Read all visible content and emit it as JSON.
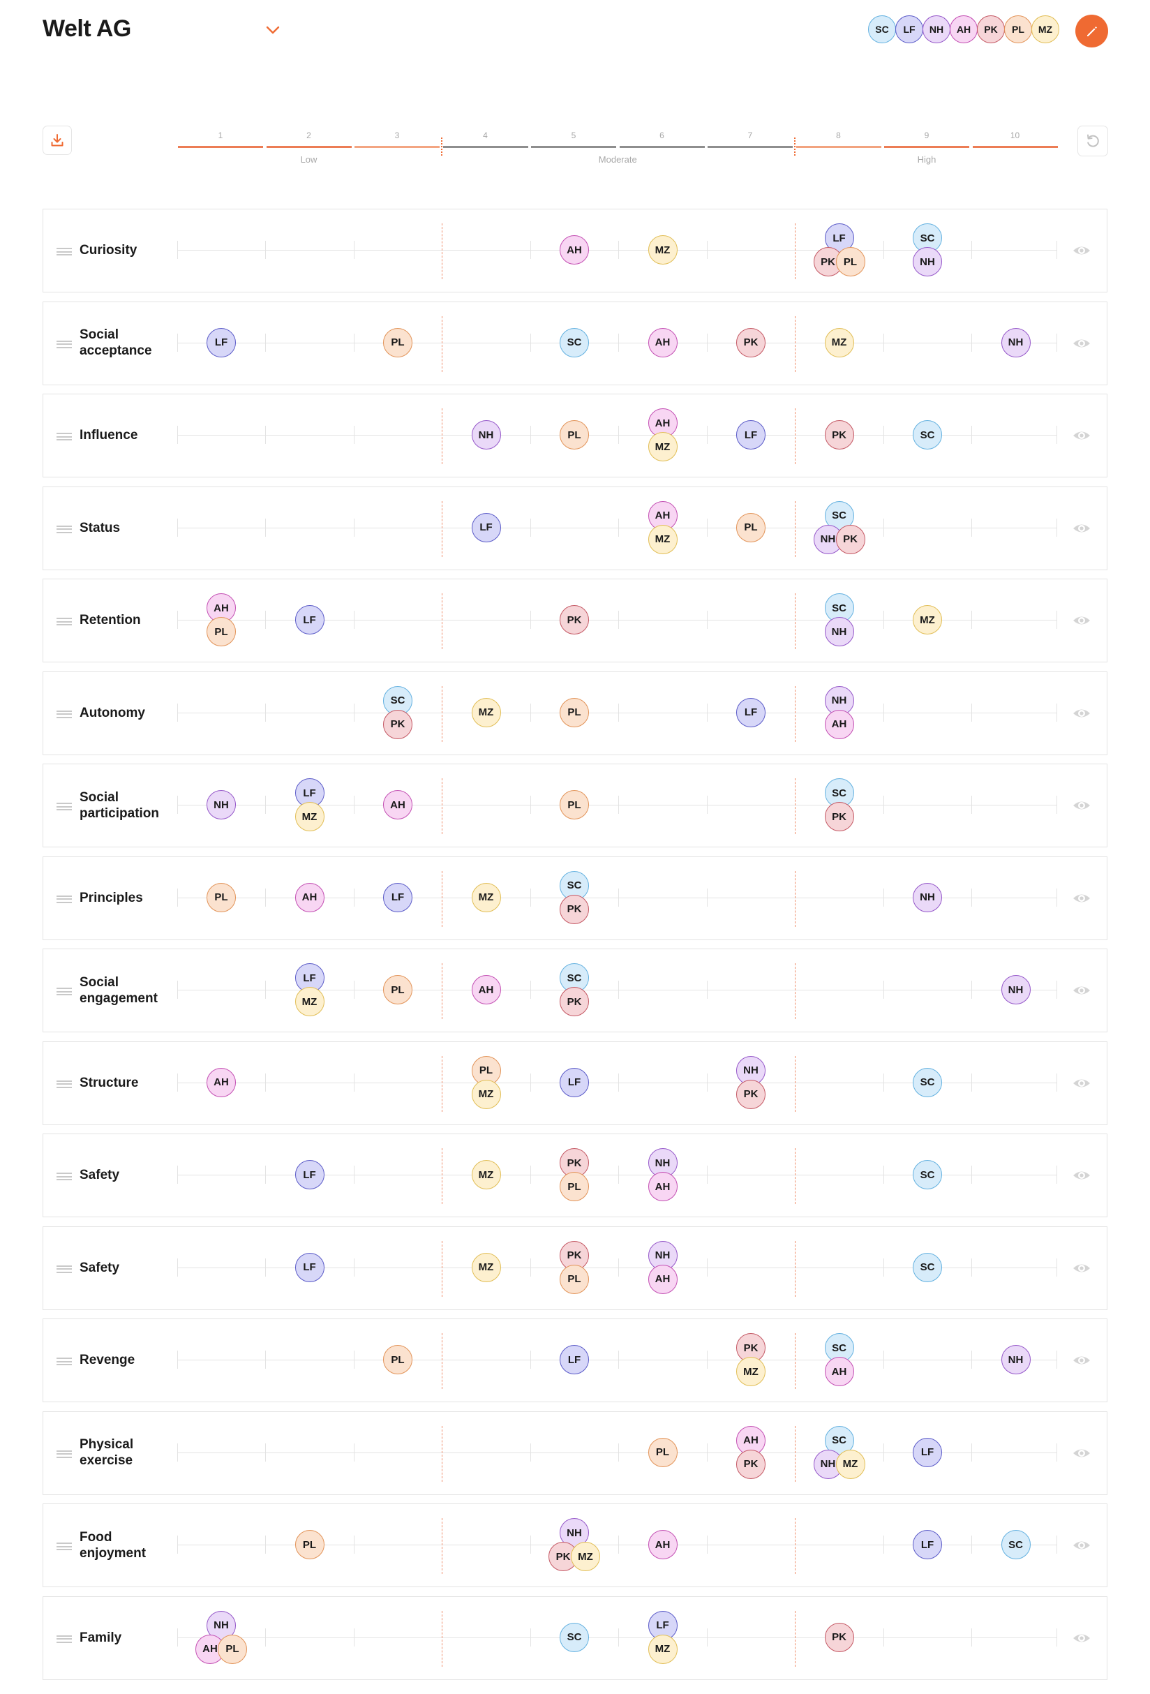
{
  "header": {
    "company": "Welt AG",
    "team": [
      "SC",
      "LF",
      "NH",
      "AH",
      "PK",
      "PL",
      "MZ"
    ]
  },
  "colors": {
    "accent": "#ef6a32",
    "SC": {
      "fill": "#d7ecfa",
      "border": "#63b1e0"
    },
    "LF": {
      "fill": "#d7d7f8",
      "border": "#5b5bc8"
    },
    "NH": {
      "fill": "#ead9f8",
      "border": "#9557c9"
    },
    "AH": {
      "fill": "#f8d6f3",
      "border": "#c34fb3"
    },
    "PK": {
      "fill": "#f6d5d8",
      "border": "#c45864"
    },
    "PL": {
      "fill": "#fbe2cf",
      "border": "#e29358"
    },
    "MZ": {
      "fill": "#fdf0cf",
      "border": "#e1be56"
    }
  },
  "scale": {
    "numbers": [
      "1",
      "2",
      "3",
      "4",
      "5",
      "6",
      "7",
      "8",
      "9",
      "10"
    ],
    "bands": [
      {
        "label": "Low",
        "from": 1,
        "to": 3
      },
      {
        "label": "Moderate",
        "from": 4,
        "to": 7
      },
      {
        "label": "High",
        "from": 8,
        "to": 10
      }
    ]
  },
  "icons": {
    "header": "chevron-down-icon",
    "edit": "pencil-icon",
    "download": "download-icon",
    "reset": "reset-icon",
    "row_drag": "drag-handle-icon",
    "row_visibility": "eye-icon"
  },
  "rows": [
    {
      "label": "Curiosity",
      "ratings": {
        "AH": 5,
        "MZ": 6,
        "LF": 8,
        "PK": 8,
        "PL": 8,
        "SC": 9,
        "NH": 9
      }
    },
    {
      "label": "Social acceptance",
      "ratings": {
        "LF": 1,
        "PL": 3,
        "SC": 5,
        "AH": 6,
        "PK": 7,
        "MZ": 8,
        "NH": 10
      }
    },
    {
      "label": "Influence",
      "ratings": {
        "NH": 4,
        "PL": 5,
        "AH": 6,
        "MZ": 6,
        "LF": 7,
        "PK": 8,
        "SC": 9
      }
    },
    {
      "label": "Status",
      "ratings": {
        "LF": 4,
        "AH": 6,
        "MZ": 6,
        "PL": 7,
        "SC": 8,
        "NH": 8,
        "PK": 8
      }
    },
    {
      "label": "Retention",
      "ratings": {
        "AH": 1,
        "PL": 1,
        "LF": 2,
        "PK": 5,
        "SC": 8,
        "NH": 8,
        "MZ": 9
      }
    },
    {
      "label": "Autonomy",
      "ratings": {
        "SC": 3,
        "PK": 3,
        "MZ": 4,
        "PL": 5,
        "LF": 7,
        "NH": 8,
        "AH": 8
      }
    },
    {
      "label": "Social participation",
      "ratings": {
        "NH": 1,
        "LF": 2,
        "MZ": 2,
        "AH": 3,
        "PL": 5,
        "SC": 8,
        "PK": 8
      }
    },
    {
      "label": "Principles",
      "ratings": {
        "PL": 1,
        "AH": 2,
        "LF": 3,
        "MZ": 4,
        "SC": 5,
        "PK": 5,
        "NH": 9
      }
    },
    {
      "label": "Social engagement",
      "ratings": {
        "LF": 2,
        "MZ": 2,
        "PL": 3,
        "AH": 4,
        "SC": 5,
        "PK": 5,
        "NH": 10
      }
    },
    {
      "label": "Structure",
      "ratings": {
        "AH": 1,
        "PL": 4,
        "MZ": 4,
        "LF": 5,
        "NH": 7,
        "PK": 7,
        "SC": 9
      }
    },
    {
      "label": "Safety",
      "ratings": {
        "LF": 2,
        "MZ": 4,
        "PK": 5,
        "PL": 5,
        "NH": 6,
        "AH": 6,
        "SC": 9
      }
    },
    {
      "label": "Safety",
      "ratings": {
        "LF": 2,
        "MZ": 4,
        "PK": 5,
        "PL": 5,
        "NH": 6,
        "AH": 6,
        "SC": 9
      }
    },
    {
      "label": "Revenge",
      "ratings": {
        "PL": 3,
        "LF": 5,
        "PK": 7,
        "MZ": 7,
        "SC": 8,
        "AH": 8,
        "NH": 10
      }
    },
    {
      "label": "Physical exercise",
      "ratings": {
        "PL": 6,
        "AH": 7,
        "PK": 7,
        "SC": 8,
        "NH": 8,
        "MZ": 8,
        "LF": 9
      }
    },
    {
      "label": "Food enjoyment",
      "ratings": {
        "PL": 2,
        "NH": 5,
        "PK": 5,
        "MZ": 5,
        "AH": 6,
        "LF": 9,
        "SC": 10
      }
    },
    {
      "label": "Family",
      "ratings": {
        "NH": 1,
        "AH": 1,
        "PL": 1,
        "SC": 5,
        "LF": 6,
        "MZ": 6,
        "PK": 8
      }
    }
  ]
}
